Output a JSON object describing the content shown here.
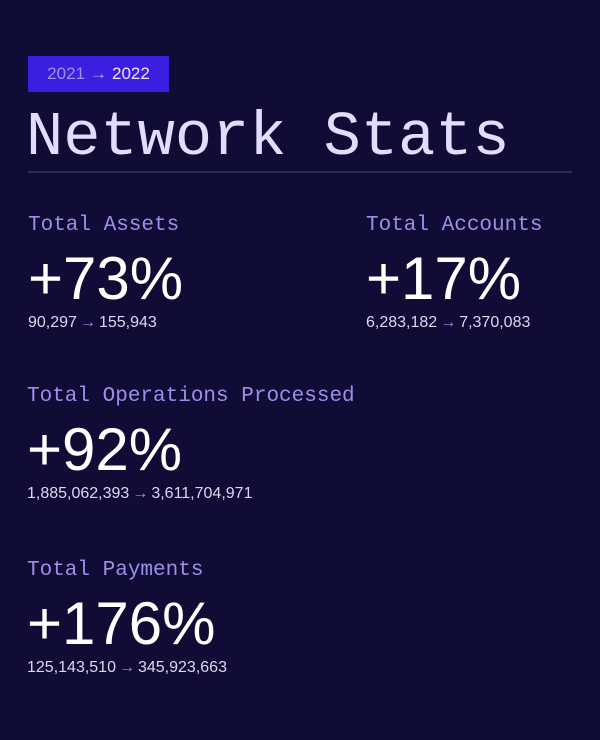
{
  "badge": {
    "from": "2021",
    "arrow": "→",
    "to": "2022"
  },
  "title": "Network Stats",
  "stats": [
    {
      "label": "Total Assets",
      "change": "+73%",
      "from": "90,297",
      "to": "155,943"
    },
    {
      "label": "Total Accounts",
      "change": "+17%",
      "from": "6,283,182",
      "to": "7,370,083"
    },
    {
      "label": "Total Operations Processed",
      "change": "+92%",
      "from": "1,885,062,393",
      "to": "3,611,704,971"
    },
    {
      "label": "Total Payments",
      "change": "+176%",
      "from": "125,143,510",
      "to": "345,923,663"
    }
  ],
  "arrow": "→",
  "colors": {
    "background": "#110c35",
    "badge": "#3b1ee0",
    "label": "#9c8fea",
    "title": "#e2ddff"
  }
}
